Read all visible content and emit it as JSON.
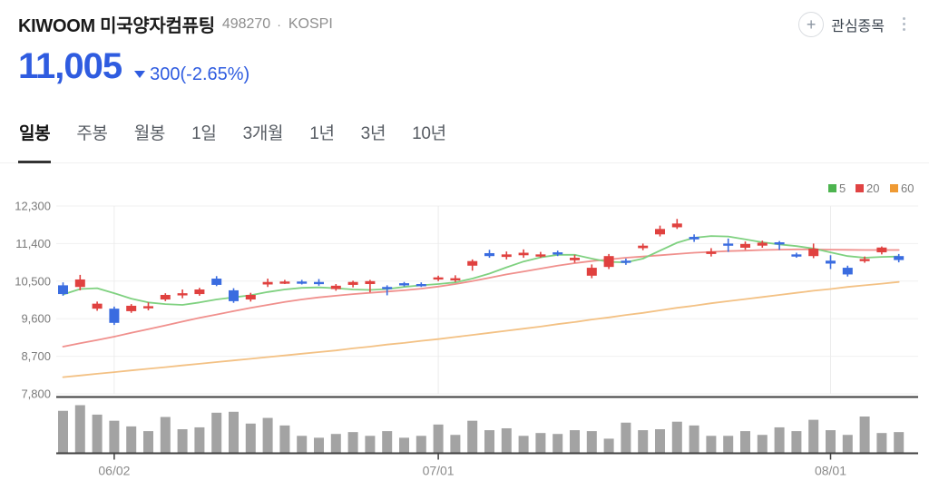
{
  "header": {
    "name": "KIWOOM 미국양자컴퓨팅",
    "code": "498270",
    "separator": "·",
    "market": "KOSPI",
    "watchlist_label": "관심종목",
    "price": "11,005",
    "change_value": "300(-2.65%)",
    "direction": "down",
    "price_color": "#2f5ce0",
    "icons": {
      "watchlist": "plus-circle-icon",
      "menu": "kebab-vertical-icon",
      "change": "triangle-down-icon"
    }
  },
  "tabs": {
    "items": [
      {
        "label": "일봉",
        "active": true
      },
      {
        "label": "주봉",
        "active": false
      },
      {
        "label": "월봉",
        "active": false
      },
      {
        "label": "1일",
        "active": false
      },
      {
        "label": "3개월",
        "active": false
      },
      {
        "label": "1년",
        "active": false
      },
      {
        "label": "3년",
        "active": false
      },
      {
        "label": "10년",
        "active": false
      }
    ]
  },
  "chart_data": {
    "type": "candlestick",
    "legend": [
      {
        "label": "5",
        "series": "MA5",
        "color": "#4db44f"
      },
      {
        "label": "20",
        "series": "MA20",
        "color": "#e04343"
      },
      {
        "label": "60",
        "series": "MA60",
        "color": "#ef9a33"
      }
    ],
    "y_axis": {
      "values": [
        12300,
        11400,
        10500,
        9600,
        8700,
        7800
      ],
      "labels": [
        "12,300",
        "11,400",
        "10,500",
        "9,600",
        "8,700",
        "7,800"
      ]
    },
    "x_axis": {
      "ticks": [
        {
          "label": "06/02",
          "index": 3
        },
        {
          "label": "07/01",
          "index": 22
        },
        {
          "label": "08/01",
          "index": 45
        }
      ]
    },
    "colors": {
      "up": "#e0413f",
      "down": "#3a6ce0",
      "ma5": "#7fd180",
      "ma20": "#f0908d",
      "ma60": "#f3c184",
      "volume": "#a3a3a3",
      "grid": "#f0f0f0",
      "vgrid": "#ececec",
      "axis": "#3f3f3f",
      "label": "#7b7b7b"
    },
    "candles": [
      [
        10400,
        10470,
        10150,
        10190
      ],
      [
        10360,
        10650,
        10280,
        10540
      ],
      [
        9840,
        10010,
        9790,
        9960
      ],
      [
        9840,
        9890,
        9450,
        9500
      ],
      [
        9780,
        9950,
        9740,
        9910
      ],
      [
        9850,
        9990,
        9800,
        9900
      ],
      [
        10060,
        10210,
        10020,
        10170
      ],
      [
        10160,
        10300,
        10090,
        10210
      ],
      [
        10190,
        10340,
        10150,
        10300
      ],
      [
        10560,
        10620,
        10380,
        10410
      ],
      [
        10280,
        10330,
        9980,
        10020
      ],
      [
        10060,
        10220,
        10010,
        10170
      ],
      [
        10420,
        10560,
        10360,
        10480
      ],
      [
        10460,
        10530,
        10430,
        10490
      ],
      [
        10490,
        10530,
        10420,
        10460
      ],
      [
        10480,
        10550,
        10390,
        10450
      ],
      [
        10310,
        10430,
        10270,
        10390
      ],
      [
        10410,
        10510,
        10350,
        10480
      ],
      [
        10430,
        10530,
        10230,
        10500
      ],
      [
        10360,
        10400,
        10160,
        10330
      ],
      [
        10450,
        10480,
        10370,
        10410
      ],
      [
        10430,
        10470,
        10360,
        10400
      ],
      [
        10540,
        10630,
        10500,
        10590
      ],
      [
        10530,
        10640,
        10480,
        10570
      ],
      [
        10870,
        11020,
        10750,
        10980
      ],
      [
        11170,
        11250,
        11060,
        11100
      ],
      [
        11080,
        11210,
        11020,
        11140
      ],
      [
        11120,
        11260,
        11060,
        11180
      ],
      [
        11100,
        11200,
        11060,
        11140
      ],
      [
        11190,
        11230,
        11100,
        11150
      ],
      [
        11000,
        11130,
        10940,
        11060
      ],
      [
        10630,
        10900,
        10570,
        10820
      ],
      [
        10840,
        11150,
        10790,
        11100
      ],
      [
        10990,
        11040,
        10890,
        10940
      ],
      [
        11290,
        11400,
        11240,
        11350
      ],
      [
        11620,
        11830,
        11570,
        11750
      ],
      [
        11790,
        11990,
        11750,
        11880
      ],
      [
        11560,
        11620,
        11440,
        11500
      ],
      [
        11150,
        11290,
        11090,
        11210
      ],
      [
        11400,
        11520,
        11200,
        11350
      ],
      [
        11300,
        11450,
        11250,
        11390
      ],
      [
        11350,
        11470,
        11300,
        11420
      ],
      [
        11430,
        11460,
        11250,
        11380
      ],
      [
        11140,
        11180,
        11060,
        11110
      ],
      [
        11100,
        11400,
        11050,
        11280
      ],
      [
        10990,
        11120,
        10790,
        10920
      ],
      [
        10820,
        10870,
        10610,
        10660
      ],
      [
        10990,
        11090,
        10940,
        11030
      ],
      [
        11190,
        11330,
        11140,
        11305
      ],
      [
        11100,
        11150,
        10950,
        11005
      ]
    ],
    "ma5": [
      10180,
      10310,
      10330,
      10210,
      10080,
      9990,
      9950,
      9930,
      9990,
      10060,
      10110,
      10160,
      10240,
      10300,
      10340,
      10350,
      10330,
      10300,
      10290,
      10310,
      10360,
      10400,
      10430,
      10470,
      10560,
      10680,
      10830,
      10970,
      11070,
      11130,
      11130,
      11040,
      10960,
      10950,
      11040,
      11230,
      11420,
      11540,
      11580,
      11570,
      11500,
      11430,
      11380,
      11340,
      11280,
      11190,
      11100,
      11060,
      11080,
      11090
    ],
    "ma20": [
      8930,
      9010,
      9090,
      9170,
      9260,
      9350,
      9440,
      9530,
      9620,
      9700,
      9780,
      9860,
      9930,
      10000,
      10060,
      10110,
      10150,
      10190,
      10220,
      10250,
      10280,
      10320,
      10370,
      10430,
      10500,
      10580,
      10660,
      10730,
      10800,
      10870,
      10930,
      10980,
      11020,
      11060,
      11090,
      11120,
      11150,
      11180,
      11200,
      11220,
      11230,
      11245,
      11255,
      11260,
      11260,
      11255,
      11250,
      11245,
      11245,
      11245
    ],
    "ma60": [
      8200,
      8240,
      8280,
      8320,
      8360,
      8400,
      8440,
      8480,
      8520,
      8560,
      8600,
      8640,
      8680,
      8720,
      8760,
      8800,
      8840,
      8890,
      8930,
      8980,
      9020,
      9070,
      9110,
      9160,
      9210,
      9260,
      9310,
      9360,
      9410,
      9470,
      9520,
      9580,
      9630,
      9690,
      9740,
      9800,
      9860,
      9910,
      9970,
      10020,
      10070,
      10120,
      10170,
      10220,
      10270,
      10310,
      10360,
      10400,
      10440,
      10480
    ],
    "volume_rel": [
      0.88,
      1.0,
      0.8,
      0.67,
      0.55,
      0.45,
      0.75,
      0.49,
      0.53,
      0.84,
      0.86,
      0.61,
      0.73,
      0.57,
      0.35,
      0.31,
      0.39,
      0.43,
      0.35,
      0.45,
      0.31,
      0.35,
      0.59,
      0.37,
      0.67,
      0.47,
      0.51,
      0.35,
      0.41,
      0.39,
      0.47,
      0.45,
      0.29,
      0.63,
      0.47,
      0.49,
      0.65,
      0.57,
      0.35,
      0.35,
      0.45,
      0.37,
      0.53,
      0.45,
      0.69,
      0.47,
      0.37,
      0.76,
      0.41,
      0.43
    ]
  }
}
